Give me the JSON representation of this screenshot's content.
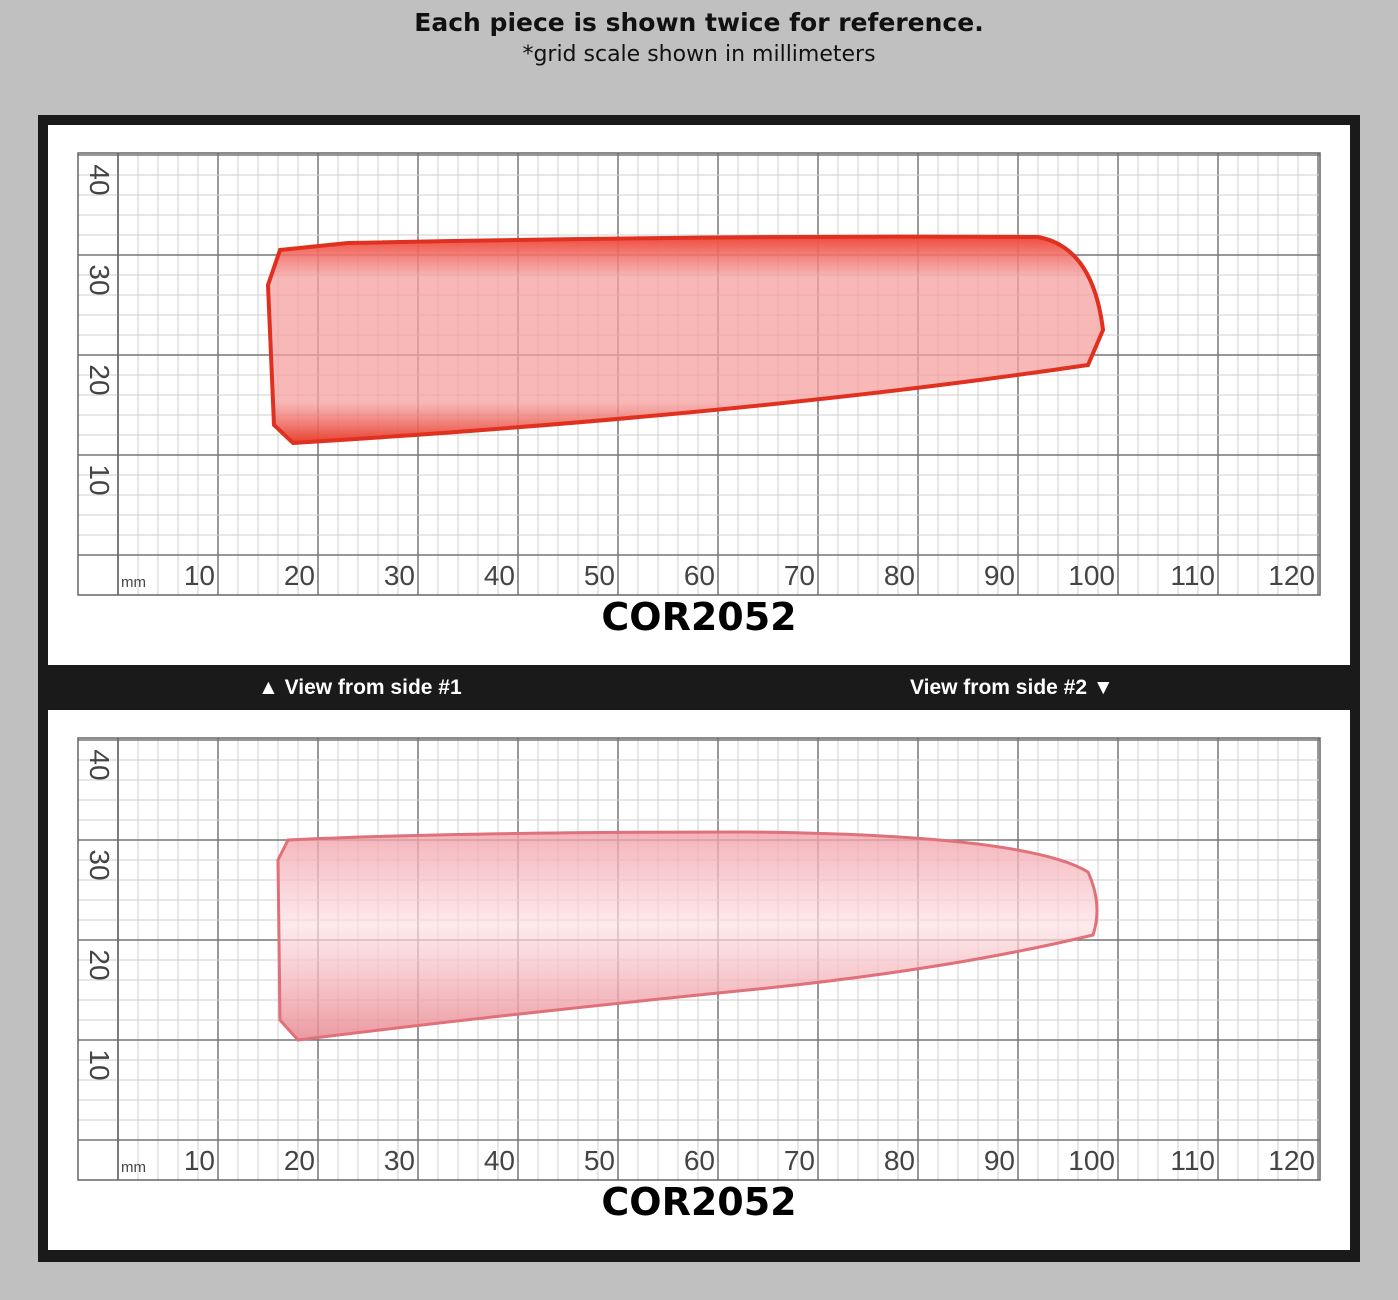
{
  "header": {
    "title": "Each piece is shown twice for reference.",
    "subtitle": "*grid scale shown in millimeters"
  },
  "divider": {
    "left": "▲ View from side #1",
    "right": "View from side #2 ▼"
  },
  "panels": [
    {
      "code": "COR2052",
      "unit": "mm",
      "x_labels": [
        "10",
        "20",
        "30",
        "40",
        "50",
        "60",
        "70",
        "80",
        "90",
        "100",
        "110",
        "120"
      ],
      "y_labels": [
        "40",
        "30",
        "20",
        "10"
      ]
    },
    {
      "code": "COR2052",
      "unit": "mm",
      "x_labels": [
        "10",
        "20",
        "30",
        "40",
        "50",
        "60",
        "70",
        "80",
        "90",
        "100",
        "110",
        "120"
      ],
      "y_labels": [
        "40",
        "30",
        "20",
        "10"
      ]
    }
  ]
}
